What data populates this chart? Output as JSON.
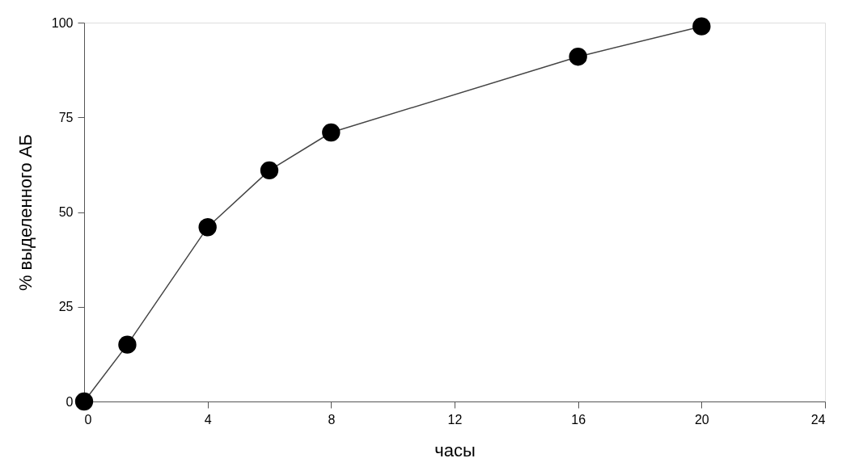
{
  "chart_data": {
    "type": "line",
    "xlabel": "часы",
    "ylabel": "% выделенного АБ",
    "x": [
      0,
      1.4,
      4,
      6,
      8,
      16,
      20
    ],
    "series": [
      {
        "color": "#000000",
        "values": [
          0,
          15,
          46,
          61,
          71,
          91,
          99
        ]
      }
    ],
    "xlim": [
      0,
      24
    ],
    "xticks": [
      0,
      4,
      8,
      12,
      16,
      20,
      24
    ],
    "ylim": [
      0,
      100
    ],
    "yticks": [
      0,
      25,
      50,
      75,
      100
    ],
    "grid": false,
    "legend": false,
    "marker": "circle",
    "line_style": "solid"
  }
}
